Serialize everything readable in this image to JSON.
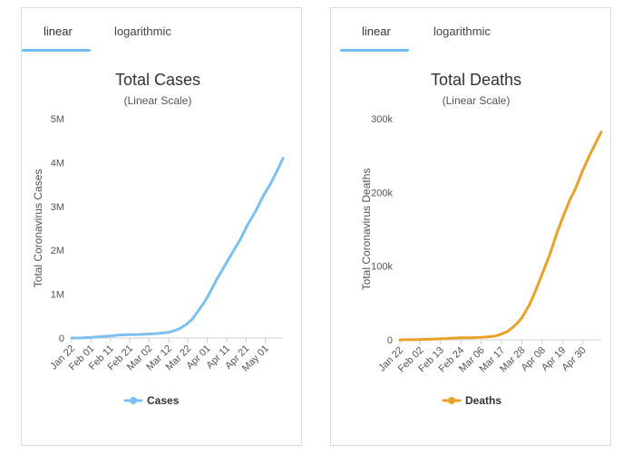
{
  "panels": [
    {
      "tabs": [
        {
          "label": "linear"
        },
        {
          "label": "logarithmic"
        }
      ],
      "active_tab": 0,
      "color": "#7cc0f2"
    },
    {
      "tabs": [
        {
          "label": "linear"
        },
        {
          "label": "logarithmic"
        }
      ],
      "active_tab": 0,
      "color": "#e8a22a"
    }
  ],
  "chart_data": [
    {
      "type": "line",
      "title": "Total Cases",
      "subtitle": "(Linear Scale)",
      "xlabel": "",
      "ylabel": "Total Coronavirus Cases",
      "x_tick_labels": [
        "Jan 22",
        "Feb 01",
        "Feb 11",
        "Feb 21",
        "Mar 02",
        "Mar 12",
        "Mar 22",
        "Apr 01",
        "Apr 11",
        "Apr 21",
        "May 01"
      ],
      "y_ticks": [
        0,
        1000000,
        2000000,
        3000000,
        4000000,
        5000000
      ],
      "y_tick_labels": [
        "0",
        "1M",
        "2M",
        "3M",
        "4M",
        "5M"
      ],
      "ylim": [
        0,
        5000000
      ],
      "grid": false,
      "legend_position": "bottom",
      "series": [
        {
          "name": "Cases",
          "x": [
            "Jan 22",
            "Jan 27",
            "Feb 01",
            "Feb 06",
            "Feb 11",
            "Feb 16",
            "Feb 21",
            "Feb 26",
            "Mar 02",
            "Mar 07",
            "Mar 12",
            "Mar 15",
            "Mar 18",
            "Mar 21",
            "Mar 24",
            "Mar 27",
            "Mar 30",
            "Apr 02",
            "Apr 06",
            "Apr 10",
            "Apr 14",
            "Apr 18",
            "Apr 22",
            "Apr 26",
            "Apr 30",
            "May 04",
            "May 08",
            "May 10"
          ],
          "values": [
            600,
            3000,
            12000,
            31000,
            45000,
            71000,
            77000,
            81000,
            90000,
            105000,
            128000,
            168000,
            220000,
            305000,
            420000,
            600000,
            785000,
            1010000,
            1350000,
            1650000,
            1950000,
            2250000,
            2600000,
            2900000,
            3250000,
            3550000,
            3900000,
            4100000
          ]
        }
      ]
    },
    {
      "type": "line",
      "title": "Total Deaths",
      "subtitle": "(Linear Scale)",
      "xlabel": "",
      "ylabel": "Total Coronavirus Deaths",
      "x_tick_labels": [
        "Jan 22",
        "Feb 02",
        "Feb 13",
        "Feb 24",
        "Mar 06",
        "Mar 17",
        "Mar 28",
        "Apr 08",
        "Apr 19",
        "Apr 30"
      ],
      "y_ticks": [
        0,
        100000,
        200000,
        300000
      ],
      "y_tick_labels": [
        "0",
        "100k",
        "200k",
        "300k"
      ],
      "ylim": [
        0,
        300000
      ],
      "grid": false,
      "legend_position": "bottom",
      "series": [
        {
          "name": "Deaths",
          "x": [
            "Jan 22",
            "Jan 28",
            "Feb 02",
            "Feb 08",
            "Feb 13",
            "Feb 19",
            "Feb 24",
            "Mar 01",
            "Mar 06",
            "Mar 11",
            "Mar 14",
            "Mar 17",
            "Mar 20",
            "Mar 23",
            "Mar 26",
            "Mar 28",
            "Apr 01",
            "Apr 04",
            "Apr 08",
            "Apr 12",
            "Apr 16",
            "Apr 19",
            "Apr 23",
            "Apr 26",
            "Apr 30",
            "May 04",
            "May 08",
            "May 10"
          ],
          "values": [
            17,
            130,
            360,
            800,
            1400,
            2200,
            2700,
            3000,
            3400,
            4300,
            5400,
            7900,
            11000,
            16500,
            24000,
            30000,
            47000,
            64000,
            89000,
            115000,
            145000,
            165000,
            190000,
            205000,
            230000,
            252000,
            272000,
            282000
          ]
        }
      ]
    }
  ]
}
